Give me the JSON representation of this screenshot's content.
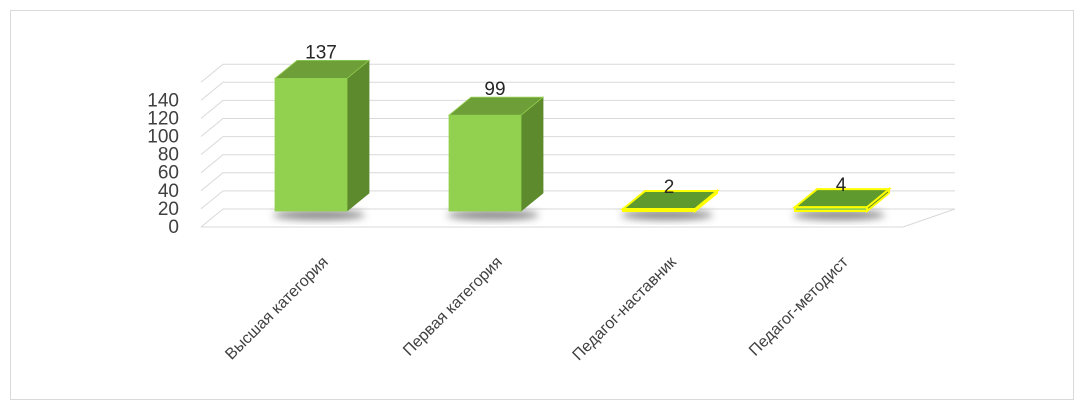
{
  "chart_data": {
    "type": "bar",
    "style": "3d-column",
    "categories": [
      "Высшая категория",
      "Первая категория",
      "Педагог-наставник",
      "Педагог-методист"
    ],
    "values": [
      137,
      99,
      2,
      4
    ],
    "data_labels": [
      "137",
      "99",
      "2",
      "4"
    ],
    "y_ticks": [
      "0",
      "20",
      "40",
      "60",
      "80",
      "100",
      "120",
      "140"
    ],
    "ylim": [
      0,
      140
    ],
    "title": "",
    "xlabel": "",
    "ylabel": "",
    "grid": true,
    "legend": "none",
    "colors": {
      "front": "#92d050",
      "side": "#5d8a2c",
      "top": "#6e9e38",
      "highlight_outline": "#ffff00",
      "grid": "#d9d9d9",
      "shadow": "#3a3a3a"
    }
  }
}
